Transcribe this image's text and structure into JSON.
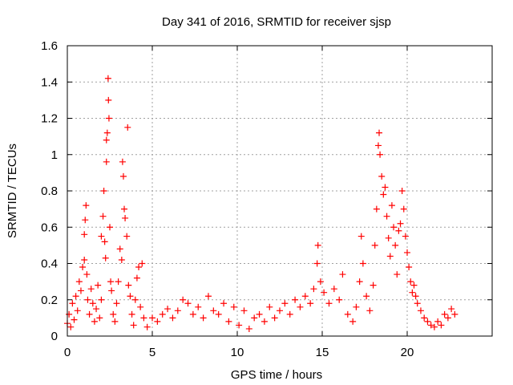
{
  "chart_data": {
    "type": "scatter",
    "title": "Day 341 of 2016, SRMTID for receiver sjsp",
    "xlabel": "GPS time / hours",
    "ylabel": "SRMTID / TECUs",
    "xlim": [
      0,
      25
    ],
    "ylim": [
      0,
      1.6
    ],
    "xticks": [
      0,
      5,
      10,
      15,
      20
    ],
    "xtick_labels": [
      "0",
      "5",
      "10",
      "15",
      "20"
    ],
    "yticks": [
      0,
      0.2,
      0.4,
      0.6,
      0.8,
      1,
      1.2,
      1.4,
      1.6
    ],
    "ytick_labels": [
      "0",
      "0.2",
      "0.4",
      "0.6",
      "0.8",
      "1",
      "1.2",
      "1.4",
      "1.6"
    ],
    "grid": true,
    "marker": "+",
    "color": "#ff0000",
    "series": [
      {
        "name": "SRMTID",
        "points": [
          [
            0.0,
            0.07
          ],
          [
            0.1,
            0.12
          ],
          [
            0.2,
            0.05
          ],
          [
            0.3,
            0.18
          ],
          [
            0.4,
            0.09
          ],
          [
            0.5,
            0.22
          ],
          [
            0.6,
            0.14
          ],
          [
            0.7,
            0.3
          ],
          [
            0.8,
            0.25
          ],
          [
            0.9,
            0.38
          ],
          [
            1.0,
            0.42
          ],
          [
            1.0,
            0.56
          ],
          [
            1.05,
            0.64
          ],
          [
            1.1,
            0.72
          ],
          [
            1.15,
            0.34
          ],
          [
            1.2,
            0.2
          ],
          [
            1.3,
            0.12
          ],
          [
            1.4,
            0.26
          ],
          [
            1.5,
            0.18
          ],
          [
            1.6,
            0.08
          ],
          [
            1.7,
            0.15
          ],
          [
            1.8,
            0.28
          ],
          [
            1.9,
            0.1
          ],
          [
            2.0,
            0.2
          ],
          [
            2.0,
            0.55
          ],
          [
            2.1,
            0.66
          ],
          [
            2.15,
            0.8
          ],
          [
            2.2,
            0.52
          ],
          [
            2.25,
            0.43
          ],
          [
            2.3,
            0.96
          ],
          [
            2.3,
            1.08
          ],
          [
            2.35,
            1.12
          ],
          [
            2.4,
            1.42
          ],
          [
            2.42,
            1.3
          ],
          [
            2.45,
            1.2
          ],
          [
            2.5,
            0.6
          ],
          [
            2.55,
            0.3
          ],
          [
            2.6,
            0.25
          ],
          [
            2.7,
            0.12
          ],
          [
            2.8,
            0.08
          ],
          [
            2.9,
            0.18
          ],
          [
            3.0,
            0.3
          ],
          [
            3.1,
            0.48
          ],
          [
            3.2,
            0.42
          ],
          [
            3.25,
            0.96
          ],
          [
            3.3,
            0.88
          ],
          [
            3.35,
            0.7
          ],
          [
            3.4,
            0.65
          ],
          [
            3.5,
            0.55
          ],
          [
            3.55,
            1.15
          ],
          [
            3.6,
            0.28
          ],
          [
            3.7,
            0.22
          ],
          [
            3.8,
            0.12
          ],
          [
            3.9,
            0.06
          ],
          [
            4.0,
            0.2
          ],
          [
            4.1,
            0.32
          ],
          [
            4.2,
            0.38
          ],
          [
            4.3,
            0.16
          ],
          [
            4.4,
            0.4
          ],
          [
            4.5,
            0.1
          ],
          [
            4.7,
            0.05
          ],
          [
            5.0,
            0.1
          ],
          [
            5.3,
            0.08
          ],
          [
            5.6,
            0.12
          ],
          [
            5.9,
            0.15
          ],
          [
            6.2,
            0.1
          ],
          [
            6.5,
            0.14
          ],
          [
            6.8,
            0.2
          ],
          [
            7.1,
            0.18
          ],
          [
            7.4,
            0.12
          ],
          [
            7.7,
            0.16
          ],
          [
            8.0,
            0.1
          ],
          [
            8.3,
            0.22
          ],
          [
            8.6,
            0.14
          ],
          [
            8.9,
            0.12
          ],
          [
            9.2,
            0.18
          ],
          [
            9.5,
            0.08
          ],
          [
            9.8,
            0.16
          ],
          [
            10.1,
            0.06
          ],
          [
            10.4,
            0.14
          ],
          [
            10.7,
            0.04
          ],
          [
            11.0,
            0.1
          ],
          [
            11.3,
            0.12
          ],
          [
            11.6,
            0.08
          ],
          [
            11.9,
            0.16
          ],
          [
            12.2,
            0.1
          ],
          [
            12.5,
            0.14
          ],
          [
            12.8,
            0.18
          ],
          [
            13.1,
            0.12
          ],
          [
            13.4,
            0.2
          ],
          [
            13.7,
            0.16
          ],
          [
            14.0,
            0.22
          ],
          [
            14.3,
            0.18
          ],
          [
            14.5,
            0.26
          ],
          [
            14.7,
            0.4
          ],
          [
            14.75,
            0.5
          ],
          [
            14.9,
            0.3
          ],
          [
            15.1,
            0.24
          ],
          [
            15.4,
            0.18
          ],
          [
            15.7,
            0.26
          ],
          [
            16.0,
            0.2
          ],
          [
            16.2,
            0.34
          ],
          [
            16.5,
            0.12
          ],
          [
            16.8,
            0.08
          ],
          [
            17.0,
            0.16
          ],
          [
            17.2,
            0.3
          ],
          [
            17.3,
            0.55
          ],
          [
            17.4,
            0.4
          ],
          [
            17.6,
            0.22
          ],
          [
            17.8,
            0.14
          ],
          [
            18.0,
            0.28
          ],
          [
            18.1,
            0.5
          ],
          [
            18.2,
            0.7
          ],
          [
            18.3,
            1.05
          ],
          [
            18.35,
            1.12
          ],
          [
            18.4,
            1.0
          ],
          [
            18.5,
            0.88
          ],
          [
            18.6,
            0.78
          ],
          [
            18.7,
            0.82
          ],
          [
            18.8,
            0.66
          ],
          [
            18.9,
            0.54
          ],
          [
            19.0,
            0.44
          ],
          [
            19.1,
            0.72
          ],
          [
            19.2,
            0.6
          ],
          [
            19.3,
            0.5
          ],
          [
            19.4,
            0.34
          ],
          [
            19.5,
            0.58
          ],
          [
            19.6,
            0.62
          ],
          [
            19.7,
            0.8
          ],
          [
            19.8,
            0.7
          ],
          [
            19.9,
            0.55
          ],
          [
            20.0,
            0.46
          ],
          [
            20.1,
            0.38
          ],
          [
            20.2,
            0.3
          ],
          [
            20.3,
            0.24
          ],
          [
            20.4,
            0.28
          ],
          [
            20.5,
            0.22
          ],
          [
            20.6,
            0.18
          ],
          [
            20.8,
            0.14
          ],
          [
            21.0,
            0.1
          ],
          [
            21.2,
            0.08
          ],
          [
            21.4,
            0.06
          ],
          [
            21.6,
            0.05
          ],
          [
            21.8,
            0.08
          ],
          [
            22.0,
            0.06
          ],
          [
            22.2,
            0.12
          ],
          [
            22.4,
            0.1
          ],
          [
            22.6,
            0.15
          ],
          [
            22.8,
            0.12
          ]
        ]
      }
    ]
  }
}
